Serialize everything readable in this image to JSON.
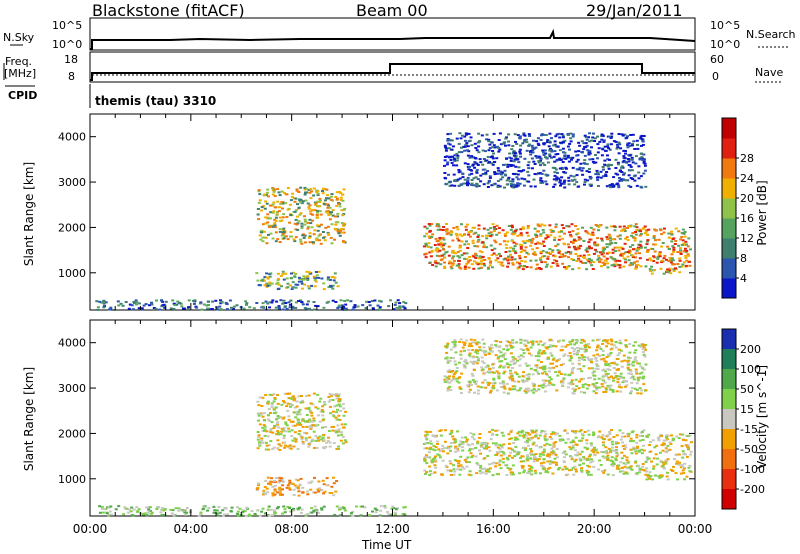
{
  "header": {
    "station": "Blackstone (fitACF)",
    "beam": "Beam 00",
    "date": "29/Jan/2011"
  },
  "strip_labels": {
    "nsky": "N.Sky",
    "nsky_top": "10^5",
    "nsky_bottom": "10^0",
    "nsearch": "N.Search",
    "nsearch_top": "10^5",
    "nsearch_bottom": "10^0",
    "freq_line1": "Freq.",
    "freq_line2": "[MHz]",
    "freq_top": "18",
    "freq_bottom": "8",
    "nave": "Nave",
    "nave_top": "60",
    "nave_bottom": "0",
    "cpid": "CPID",
    "cpid_value": "themis (tau) 3310"
  },
  "colors": {
    "power": [
      "#0b16c8",
      "#2b55ae",
      "#3f7f6f",
      "#55a35f",
      "#8fc248",
      "#f0b000",
      "#f07a10",
      "#e02010",
      "#c00000"
    ],
    "velocity": [
      "#1a2fb0",
      "#1f7f5a",
      "#4fa84a",
      "#7fd14c",
      "#c8c8c0",
      "#f0a000",
      "#f07010",
      "#e83010",
      "#d00000"
    ]
  },
  "chart_data": [
    {
      "type": "heatmap",
      "name": "power",
      "xlabel": "",
      "ylabel": "Slant Range [km]",
      "colorbar_label": "Power [dB]",
      "colorbar_ticks": [
        "4",
        "8",
        "12",
        "16",
        "20",
        "24",
        "28"
      ],
      "xlim_hours": [
        0,
        24
      ],
      "ylim_km": [
        180,
        4500
      ],
      "yticks": [
        "1000",
        "2000",
        "3000",
        "4000"
      ],
      "regions": [
        {
          "t0": 6.6,
          "t1": 10.1,
          "r0": 1650,
          "r1": 2900,
          "level": 5
        },
        {
          "t0": 6.5,
          "t1": 9.8,
          "r0": 650,
          "r1": 1050,
          "level": 4
        },
        {
          "t0": 13.2,
          "t1": 22.0,
          "r0": 1100,
          "r1": 2100,
          "level": 6
        },
        {
          "t0": 22.0,
          "t1": 23.8,
          "r0": 1000,
          "r1": 2000,
          "level": 6
        },
        {
          "t0": 14.0,
          "t1": 22.0,
          "r0": 2900,
          "r1": 4100,
          "level": 1
        },
        {
          "t0": 0.2,
          "t1": 12.5,
          "r0": 200,
          "r1": 420,
          "level": 2
        }
      ]
    },
    {
      "type": "heatmap",
      "name": "velocity",
      "xlabel": "Time UT",
      "ylabel": "Slant Range [km]",
      "colorbar_label": "Velocity [m s^-1]",
      "colorbar_ticks": [
        "200",
        "100",
        "50",
        "15",
        "-15",
        "-50",
        "-100",
        "-200"
      ],
      "xlim_hours": [
        0,
        24
      ],
      "ylim_km": [
        180,
        4500
      ],
      "yticks": [
        "1000",
        "2000",
        "3000",
        "4000"
      ],
      "xticks": [
        "00:00",
        "04:00",
        "08:00",
        "12:00",
        "16:00",
        "20:00",
        "00:00"
      ],
      "regions": [
        {
          "t0": 6.6,
          "t1": 10.1,
          "r0": 1650,
          "r1": 2900,
          "level": 4
        },
        {
          "t0": 6.5,
          "t1": 9.8,
          "r0": 650,
          "r1": 1050,
          "level": 5
        },
        {
          "t0": 13.2,
          "t1": 22.0,
          "r0": 1100,
          "r1": 2100,
          "level": 4
        },
        {
          "t0": 22.0,
          "t1": 23.8,
          "r0": 1000,
          "r1": 2000,
          "level": 4
        },
        {
          "t0": 14.0,
          "t1": 22.0,
          "r0": 2900,
          "r1": 4100,
          "level": 4
        },
        {
          "t0": 0.2,
          "t1": 12.5,
          "r0": 200,
          "r1": 420,
          "level": 3
        }
      ]
    }
  ]
}
